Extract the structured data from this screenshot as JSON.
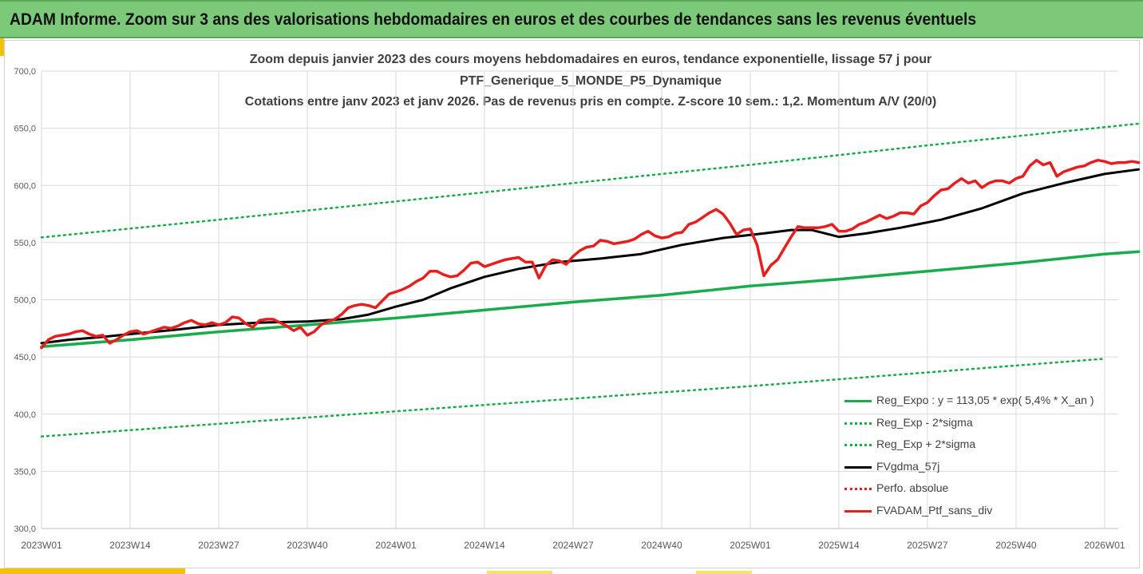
{
  "banner": {
    "title": "ADAM Informe. Zoom sur 3 ans des valorisations hebdomadaires en euros et des courbes de tendances sans les revenus éventuels"
  },
  "colors": {
    "banner_bg": "#7dc97a",
    "accent": "#f2c200",
    "reg_expo": "#1aab4a",
    "sigma": "#1aab4a",
    "fvgdma": "#000000",
    "perfo": "#e61e1e",
    "fvadam": "#e61e1e"
  },
  "chart_data": {
    "type": "line",
    "title_lines": [
      "Zoom depuis janvier 2023 des cours moyens hebdomadaires  en euros, tendance exponentielle, lissage 57 j pour",
      "PTF_Generique_5_MONDE_P5_Dynamique",
      "Cotations entre janv 2023 et janv 2026. Pas de revenus pris en compte. Z-score 10 sem.: 1,2. Momentum A/V (20/0)"
    ],
    "ylim": [
      300,
      700
    ],
    "yticks": [
      "300,0",
      "350,0",
      "400,0",
      "450,0",
      "500,0",
      "550,0",
      "600,0",
      "650,0",
      "700,0"
    ],
    "xlim": [
      0,
      158
    ],
    "xticks": [
      {
        "x": 0,
        "label": "2023W01"
      },
      {
        "x": 13,
        "label": "2023W14"
      },
      {
        "x": 26,
        "label": "2023W27"
      },
      {
        "x": 39,
        "label": "2023W40"
      },
      {
        "x": 52,
        "label": "2024W01"
      },
      {
        "x": 65,
        "label": "2024W14"
      },
      {
        "x": 78,
        "label": "2024W27"
      },
      {
        "x": 91,
        "label": "2024W40"
      },
      {
        "x": 104,
        "label": "2025W01"
      },
      {
        "x": 117,
        "label": "2025W14"
      },
      {
        "x": 130,
        "label": "2025W27"
      },
      {
        "x": 143,
        "label": "2025W40"
      },
      {
        "x": 156,
        "label": "2026W01"
      }
    ],
    "grid": {
      "horizontal": true,
      "vertical": true
    },
    "legend_position": "bottom-right",
    "series": [
      {
        "name": "Reg_Expo : y = 113,05 * exp( 5,4% *  X_an )",
        "style": "solid",
        "x": [
          0,
          13,
          26,
          39,
          52,
          65,
          78,
          91,
          104,
          117,
          130,
          143,
          156,
          161
        ],
        "values": [
          459,
          465,
          472,
          478,
          484,
          491,
          498,
          504,
          512,
          518,
          525,
          532,
          540,
          542
        ]
      },
      {
        "name": "Reg_Exp - 2*sigma",
        "style": "dotted",
        "x": [
          0,
          26,
          52,
          78,
          104,
          130,
          156
        ],
        "values": [
          380.5,
          391.5,
          402.5,
          413.5,
          424.5,
          436.5,
          448.5
        ]
      },
      {
        "name": "Reg_Exp + 2*sigma",
        "style": "dotted",
        "x": [
          0,
          26,
          52,
          78,
          104,
          130,
          161
        ],
        "values": [
          554.5,
          570,
          586,
          602,
          618,
          635,
          654
        ]
      },
      {
        "name": "FVgdma_57j",
        "style": "solid",
        "x": [
          0,
          4,
          8,
          13,
          20,
          26,
          32,
          39,
          44,
          48,
          52,
          56,
          60,
          65,
          70,
          76,
          82,
          88,
          94,
          100,
          106,
          110,
          113,
          117,
          121,
          126,
          132,
          138,
          144,
          150,
          156,
          161
        ],
        "values": [
          462,
          465,
          467,
          470,
          474,
          478,
          480,
          481,
          483,
          487,
          494,
          500,
          510,
          520,
          527,
          533,
          536,
          540,
          548,
          554,
          558,
          561,
          561,
          555,
          558,
          563,
          570,
          580,
          593,
          602,
          610,
          614
        ]
      },
      {
        "name": "Perfo. absolue",
        "style": "dotted",
        "x": [],
        "values": []
      },
      {
        "name": "FVADAM_Ptf_sans_div",
        "style": "solid",
        "x": [
          0,
          1,
          2,
          3,
          4,
          5,
          6,
          7,
          8,
          9,
          10,
          11,
          12,
          13,
          14,
          15,
          16,
          17,
          18,
          19,
          20,
          21,
          22,
          23,
          24,
          25,
          26,
          27,
          28,
          29,
          30,
          31,
          32,
          33,
          34,
          35,
          36,
          37,
          38,
          39,
          40,
          41,
          42,
          43,
          44,
          45,
          46,
          47,
          48,
          49,
          50,
          51,
          52,
          53,
          54,
          55,
          56,
          57,
          58,
          59,
          60,
          61,
          62,
          63,
          64,
          65,
          66,
          67,
          68,
          69,
          70,
          71,
          72,
          73,
          74,
          75,
          76,
          77,
          78,
          79,
          80,
          81,
          82,
          83,
          84,
          85,
          86,
          87,
          88,
          89,
          90,
          91,
          92,
          93,
          94,
          95,
          96,
          97,
          98,
          99,
          100,
          101,
          102,
          103,
          104,
          105,
          106,
          107,
          108,
          109,
          110,
          111,
          112,
          113,
          114,
          115,
          116,
          117,
          118,
          119,
          120,
          121,
          122,
          123,
          124,
          125,
          126,
          127,
          128,
          129,
          130,
          131,
          132,
          133,
          134,
          135,
          136,
          137,
          138,
          139,
          140,
          141,
          142,
          143,
          144,
          145,
          146,
          147,
          148,
          149,
          150,
          151,
          152,
          153,
          154,
          155,
          156,
          157,
          158,
          159,
          160,
          161
        ],
        "values": [
          458,
          465,
          468,
          469,
          470,
          472,
          473,
          470,
          468,
          469,
          462,
          465,
          469,
          472,
          473,
          470,
          472,
          474,
          476,
          475,
          477,
          480,
          482,
          479,
          478,
          480,
          478,
          480,
          485,
          484,
          479,
          476,
          482,
          483,
          483,
          480,
          477,
          473,
          476,
          469,
          472,
          478,
          481,
          483,
          487,
          493,
          495,
          496,
          495,
          493,
          499,
          505,
          507,
          509,
          512,
          516,
          519,
          525,
          525,
          522,
          520,
          521,
          526,
          532,
          533,
          529,
          531,
          533,
          535,
          536,
          537,
          533,
          533,
          519,
          530,
          535,
          534,
          531,
          538,
          543,
          546,
          547,
          552,
          551,
          549,
          550,
          551,
          553,
          557,
          560,
          556,
          554,
          555,
          558,
          559,
          566,
          568,
          572,
          576,
          579,
          575,
          567,
          557,
          561,
          562,
          548,
          521,
          530,
          535,
          545,
          555,
          564,
          563,
          563,
          563,
          564,
          566,
          560,
          560,
          562,
          566,
          568,
          571,
          574,
          571,
          573,
          576,
          576,
          575,
          582,
          585,
          591,
          596,
          597,
          602,
          606,
          602,
          604,
          598,
          602,
          604,
          604,
          602,
          606,
          608,
          617,
          622,
          618,
          620,
          608,
          612,
          614,
          616,
          617,
          620,
          622,
          621,
          619,
          620,
          620,
          621,
          620
        ]
      }
    ]
  }
}
